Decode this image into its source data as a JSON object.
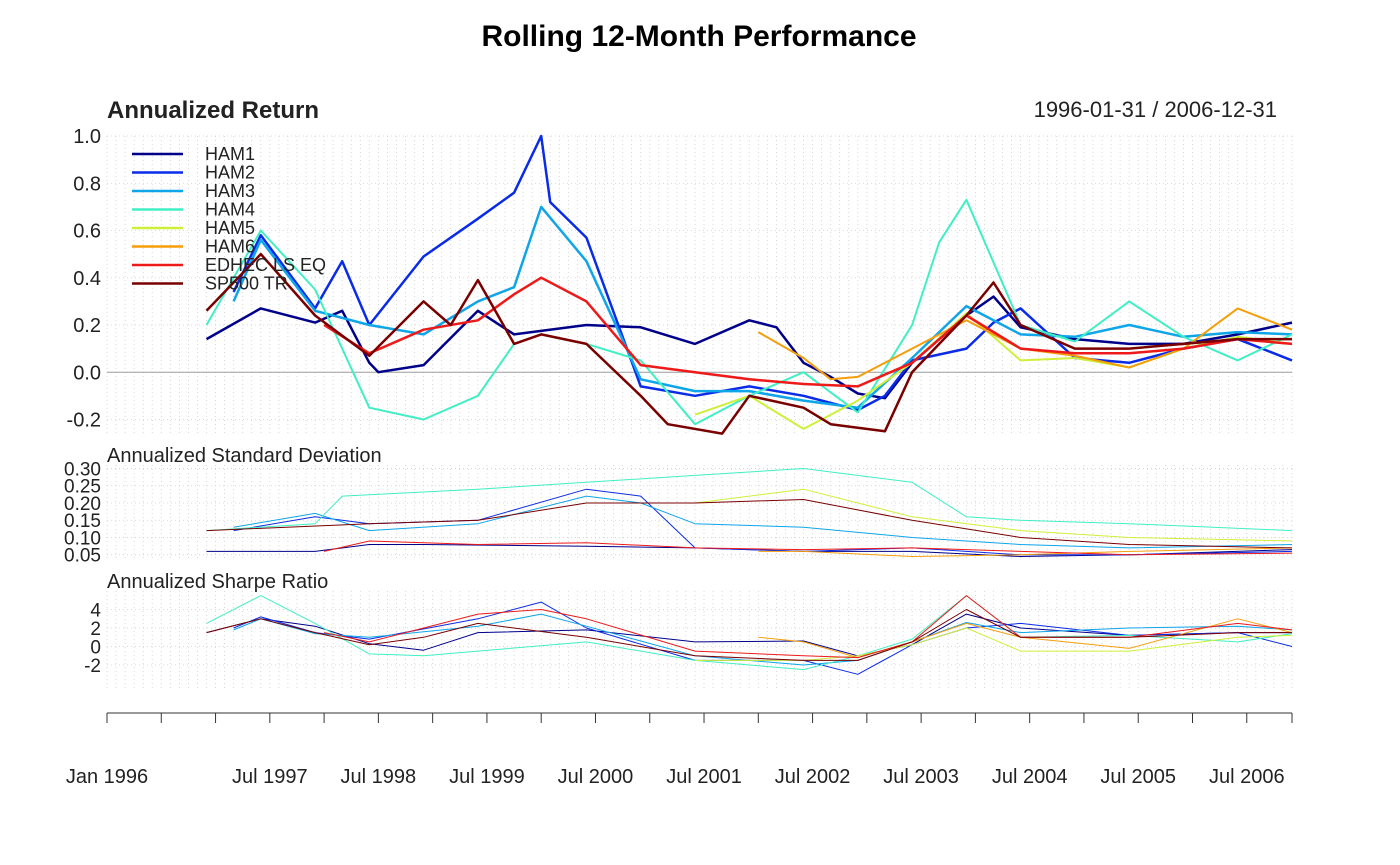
{
  "title": "Rolling 12-Month Performance",
  "date_range": "1996-01-31 / 2006-12-31",
  "chart_data": [
    {
      "type": "line",
      "panel": "return",
      "title": "Annualized Return",
      "ylim": [
        -0.27,
        1.0
      ],
      "yticks": [
        1.0,
        0.8,
        0.6,
        0.4,
        0.2,
        0.0,
        -0.2
      ],
      "ytick_labels": [
        "1.0",
        "0.8",
        "0.6",
        "0.4",
        "0.2",
        "0.0",
        "-0.2"
      ],
      "grid": true,
      "legend_position": "top-left",
      "series": [
        {
          "name": "HAM1",
          "color": "#00008B",
          "width": 2.5,
          "x": [
            "1996-12",
            "1997-06",
            "1997-12",
            "1998-03",
            "1998-06",
            "1998-07",
            "1998-12",
            "1999-06",
            "1999-10",
            "2000-06",
            "2000-12",
            "2001-06",
            "2001-12",
            "2002-03",
            "2002-06",
            "2002-09",
            "2002-12",
            "2003-03",
            "2003-06",
            "2003-12",
            "2004-03",
            "2004-06",
            "2004-12",
            "2005-06",
            "2005-12",
            "2006-06",
            "2006-12"
          ],
          "y": [
            0.14,
            0.27,
            0.21,
            0.26,
            0.04,
            0.0,
            0.03,
            0.26,
            0.16,
            0.2,
            0.19,
            0.12,
            0.22,
            0.19,
            0.04,
            -0.02,
            -0.09,
            -0.11,
            0.04,
            0.24,
            0.32,
            0.19,
            0.14,
            0.12,
            0.12,
            0.16,
            0.21
          ]
        },
        {
          "name": "HAM2",
          "color": "#0A2BE8",
          "width": 2.5,
          "x": [
            "1997-03",
            "1997-06",
            "1997-12",
            "1998-03",
            "1998-06",
            "1998-12",
            "1999-06",
            "1999-10",
            "2000-01",
            "2000-02",
            "2000-06",
            "2000-12",
            "2001-06",
            "2001-12",
            "2002-06",
            "2002-12",
            "2003-03",
            "2003-06",
            "2003-12",
            "2004-03",
            "2004-06",
            "2004-12",
            "2005-06",
            "2005-12",
            "2006-06",
            "2006-12"
          ],
          "y": [
            0.34,
            0.58,
            0.27,
            0.47,
            0.2,
            0.49,
            0.65,
            0.76,
            1.0,
            0.72,
            0.57,
            -0.06,
            -0.1,
            -0.06,
            -0.1,
            -0.16,
            -0.1,
            0.05,
            0.1,
            0.21,
            0.27,
            0.06,
            0.04,
            0.1,
            0.14,
            0.05
          ]
        },
        {
          "name": "HAM3",
          "color": "#0EA5E9",
          "width": 2.5,
          "x": [
            "1997-03",
            "1997-06",
            "1997-12",
            "1998-06",
            "1998-12",
            "1999-06",
            "1999-10",
            "2000-01",
            "2000-06",
            "2000-12",
            "2001-06",
            "2001-12",
            "2002-06",
            "2002-12",
            "2003-06",
            "2003-12",
            "2004-06",
            "2004-12",
            "2005-06",
            "2005-12",
            "2006-06",
            "2006-12"
          ],
          "y": [
            0.3,
            0.56,
            0.26,
            0.2,
            0.16,
            0.3,
            0.36,
            0.7,
            0.47,
            -0.03,
            -0.08,
            -0.08,
            -0.12,
            -0.15,
            0.06,
            0.28,
            0.16,
            0.15,
            0.2,
            0.15,
            0.17,
            0.16
          ]
        },
        {
          "name": "HAM4",
          "color": "#40EFC4",
          "width": 2,
          "x": [
            "1996-12",
            "1997-06",
            "1997-12",
            "1998-06",
            "1998-12",
            "1999-06",
            "1999-10",
            "2000-01",
            "2000-06",
            "2000-12",
            "2001-06",
            "2001-12",
            "2002-06",
            "2002-12",
            "2003-06",
            "2003-09",
            "2003-12",
            "2004-06",
            "2004-12",
            "2005-06",
            "2005-12",
            "2006-06",
            "2006-12"
          ],
          "y": [
            0.2,
            0.6,
            0.35,
            -0.15,
            -0.2,
            -0.1,
            0.12,
            0.16,
            0.12,
            0.05,
            -0.22,
            -0.1,
            0.0,
            -0.17,
            0.2,
            0.55,
            0.73,
            0.2,
            0.13,
            0.3,
            0.15,
            0.05,
            0.16
          ]
        },
        {
          "name": "HAM5",
          "color": "#CFF03A",
          "width": 2,
          "x": [
            "2001-06",
            "2001-12",
            "2002-06",
            "2002-12",
            "2003-06",
            "2003-12",
            "2004-06",
            "2004-12",
            "2005-06",
            "2005-12",
            "2006-06",
            "2006-12"
          ],
          "y": [
            -0.18,
            -0.1,
            -0.24,
            -0.12,
            0.04,
            0.25,
            0.05,
            0.06,
            0.02,
            0.1,
            0.15,
            0.12
          ]
        },
        {
          "name": "HAM6",
          "color": "#F59E0B",
          "width": 2,
          "x": [
            "2002-01",
            "2002-06",
            "2002-09",
            "2002-12",
            "2003-06",
            "2003-12",
            "2004-06",
            "2004-12",
            "2005-06",
            "2005-12",
            "2006-06",
            "2006-12"
          ],
          "y": [
            0.17,
            0.06,
            -0.03,
            -0.02,
            0.1,
            0.22,
            0.1,
            0.07,
            0.02,
            0.1,
            0.27,
            0.18
          ]
        },
        {
          "name": "EDHEC LS EQ",
          "color": "#EE1A1A",
          "width": 2.5,
          "x": [
            "1998-01",
            "1998-06",
            "1998-12",
            "1999-06",
            "1999-10",
            "2000-01",
            "2000-06",
            "2000-12",
            "2001-06",
            "2001-12",
            "2002-06",
            "2002-12",
            "2003-06",
            "2003-12",
            "2004-06",
            "2004-12",
            "2005-06",
            "2005-12",
            "2006-06",
            "2006-12"
          ],
          "y": [
            0.2,
            0.08,
            0.18,
            0.22,
            0.33,
            0.4,
            0.3,
            0.03,
            0.0,
            -0.03,
            -0.05,
            -0.06,
            0.04,
            0.24,
            0.1,
            0.08,
            0.08,
            0.1,
            0.14,
            0.12
          ]
        },
        {
          "name": "SP500 TR",
          "color": "#7A0000",
          "width": 2.5,
          "x": [
            "1996-12",
            "1997-06",
            "1997-12",
            "1998-06",
            "1998-12",
            "1999-03",
            "1999-06",
            "1999-10",
            "2000-01",
            "2000-06",
            "2000-12",
            "2001-03",
            "2001-09",
            "2001-12",
            "2002-06",
            "2002-09",
            "2003-03",
            "2003-06",
            "2003-12",
            "2004-03",
            "2004-06",
            "2004-12",
            "2005-06",
            "2005-12",
            "2006-06",
            "2006-12"
          ],
          "y": [
            0.26,
            0.5,
            0.24,
            0.07,
            0.3,
            0.2,
            0.39,
            0.12,
            0.16,
            0.12,
            -0.1,
            -0.22,
            -0.26,
            -0.1,
            -0.15,
            -0.22,
            -0.25,
            0.0,
            0.24,
            0.38,
            0.2,
            0.1,
            0.1,
            0.12,
            0.14,
            0.14
          ]
        }
      ]
    },
    {
      "type": "line",
      "panel": "std_dev",
      "title": "Annualized Standard Deviation",
      "ylim": [
        0.035,
        0.31
      ],
      "yticks": [
        0.3,
        0.25,
        0.2,
        0.15,
        0.1,
        0.05
      ],
      "ytick_labels": [
        "0.30",
        "0.25",
        "0.20",
        "0.15",
        "0.10",
        "0.05"
      ],
      "grid": true,
      "series": [
        {
          "color": "#00008B",
          "x": [
            "1996-12",
            "1997-12",
            "1998-06",
            "1998-12",
            "2000-06",
            "2001-06",
            "2002-06",
            "2003-06",
            "2004-06",
            "2005-06",
            "2006-12"
          ],
          "y": [
            0.06,
            0.06,
            0.08,
            0.08,
            0.075,
            0.07,
            0.06,
            0.06,
            0.045,
            0.05,
            0.065
          ]
        },
        {
          "color": "#0A2BE8",
          "x": [
            "1997-03",
            "1997-12",
            "1998-06",
            "1999-06",
            "2000-06",
            "2000-12",
            "2001-06",
            "2002-06",
            "2003-06",
            "2004-06",
            "2005-06",
            "2006-12"
          ],
          "y": [
            0.12,
            0.16,
            0.14,
            0.15,
            0.24,
            0.22,
            0.07,
            0.06,
            0.07,
            0.05,
            0.05,
            0.06
          ]
        },
        {
          "color": "#0EA5E9",
          "x": [
            "1997-03",
            "1997-12",
            "1998-06",
            "1999-06",
            "2000-06",
            "2000-12",
            "2001-06",
            "2002-06",
            "2003-06",
            "2004-06",
            "2005-06",
            "2006-12"
          ],
          "y": [
            0.13,
            0.17,
            0.12,
            0.14,
            0.22,
            0.2,
            0.14,
            0.13,
            0.1,
            0.08,
            0.07,
            0.08
          ]
        },
        {
          "color": "#40EFC4",
          "x": [
            "1996-12",
            "1997-12",
            "1998-03",
            "1999-06",
            "2000-06",
            "2001-06",
            "2002-06",
            "2003-06",
            "2003-12",
            "2004-06",
            "2005-06",
            "2006-12"
          ],
          "y": [
            0.12,
            0.14,
            0.22,
            0.24,
            0.26,
            0.28,
            0.3,
            0.26,
            0.16,
            0.15,
            0.14,
            0.12
          ]
        },
        {
          "color": "#CFF03A",
          "x": [
            "2001-06",
            "2002-06",
            "2002-12",
            "2003-06",
            "2004-06",
            "2005-06",
            "2006-12"
          ],
          "y": [
            0.2,
            0.24,
            0.2,
            0.16,
            0.12,
            0.1,
            0.09
          ]
        },
        {
          "color": "#F59E0B",
          "x": [
            "2002-01",
            "2002-06",
            "2003-06",
            "2004-06",
            "2005-06",
            "2006-12"
          ],
          "y": [
            0.06,
            0.06,
            0.045,
            0.05,
            0.06,
            0.07
          ]
        },
        {
          "color": "#EE1A1A",
          "x": [
            "1998-01",
            "1998-06",
            "1999-06",
            "2000-06",
            "2001-06",
            "2002-06",
            "2003-06",
            "2004-06",
            "2005-06",
            "2006-12"
          ],
          "y": [
            0.06,
            0.09,
            0.08,
            0.085,
            0.07,
            0.065,
            0.07,
            0.06,
            0.05,
            0.055
          ]
        },
        {
          "color": "#7A0000",
          "x": [
            "1996-12",
            "1998-06",
            "1999-06",
            "2000-06",
            "2001-06",
            "2002-06",
            "2003-06",
            "2004-06",
            "2005-06",
            "2006-12"
          ],
          "y": [
            0.12,
            0.14,
            0.15,
            0.2,
            0.2,
            0.21,
            0.15,
            0.1,
            0.08,
            0.07
          ]
        }
      ]
    },
    {
      "type": "line",
      "panel": "sharpe",
      "title": "Annualized Sharpe Ratio",
      "ylim": [
        -4.7,
        6.0
      ],
      "yticks": [
        4,
        2,
        0,
        -2
      ],
      "ytick_labels": [
        "4",
        "2",
        "0",
        "-2"
      ],
      "grid": true,
      "series": [
        {
          "color": "#00008B",
          "x": [
            "1996-12",
            "1997-06",
            "1997-12",
            "1998-06",
            "1998-12",
            "1999-06",
            "2000-06",
            "2001-06",
            "2002-06",
            "2002-12",
            "2003-06",
            "2003-12",
            "2004-06",
            "2005-06",
            "2006-06",
            "2006-12"
          ],
          "y": [
            1.5,
            3.0,
            2.2,
            0.3,
            -0.4,
            1.5,
            1.8,
            0.5,
            0.6,
            -1.0,
            0.2,
            3.5,
            2.0,
            1.2,
            1.5,
            1.5
          ]
        },
        {
          "color": "#0A2BE8",
          "x": [
            "1997-03",
            "1997-06",
            "1997-12",
            "1998-06",
            "1999-06",
            "2000-01",
            "2000-06",
            "2001-06",
            "2002-06",
            "2002-12",
            "2003-06",
            "2003-12",
            "2004-06",
            "2005-06",
            "2006-06",
            "2006-12"
          ],
          "y": [
            2.0,
            3.2,
            1.5,
            0.8,
            3.0,
            4.8,
            2.0,
            -1.5,
            -1.5,
            -3.0,
            0.2,
            2.0,
            2.5,
            1.2,
            1.5,
            0.0
          ]
        },
        {
          "color": "#0EA5E9",
          "x": [
            "1997-03",
            "1997-06",
            "1997-12",
            "1998-06",
            "1999-06",
            "2000-01",
            "2000-06",
            "2001-06",
            "2002-06",
            "2002-12",
            "2003-06",
            "2003-12",
            "2004-06",
            "2005-06",
            "2006-06",
            "2006-12"
          ],
          "y": [
            1.8,
            3.0,
            1.4,
            1.0,
            2.2,
            3.5,
            2.2,
            -1.0,
            -2.0,
            -1.5,
            0.5,
            2.6,
            1.5,
            2.0,
            2.2,
            1.8
          ]
        },
        {
          "color": "#40EFC4",
          "x": [
            "1996-12",
            "1997-06",
            "1997-12",
            "1998-06",
            "1998-12",
            "1999-06",
            "2000-06",
            "2001-06",
            "2002-06",
            "2002-12",
            "2003-06",
            "2003-12",
            "2004-06",
            "2005-06",
            "2006-06",
            "2006-12"
          ],
          "y": [
            2.5,
            5.5,
            2.5,
            -0.8,
            -1.0,
            -0.5,
            0.5,
            -1.5,
            -2.5,
            -1.0,
            0.8,
            5.5,
            1.0,
            1.2,
            0.5,
            1.4
          ]
        },
        {
          "color": "#CFF03A",
          "x": [
            "2001-06",
            "2002-06",
            "2002-12",
            "2003-06",
            "2003-12",
            "2004-06",
            "2005-06",
            "2006-06",
            "2006-12"
          ],
          "y": [
            -1.5,
            -1.5,
            -1.0,
            0.2,
            2.0,
            -0.5,
            -0.5,
            1.0,
            1.2
          ]
        },
        {
          "color": "#F59E0B",
          "x": [
            "2002-01",
            "2002-06",
            "2002-12",
            "2003-06",
            "2003-12",
            "2004-06",
            "2005-06",
            "2006-06",
            "2006-12"
          ],
          "y": [
            1.0,
            0.5,
            -1.2,
            0.5,
            2.5,
            1.0,
            -0.2,
            3.0,
            1.5
          ]
        },
        {
          "color": "#EE1A1A",
          "x": [
            "1998-01",
            "1998-06",
            "1999-06",
            "2000-01",
            "2000-06",
            "2001-06",
            "2002-06",
            "2002-12",
            "2003-06",
            "2003-12",
            "2004-06",
            "2005-06",
            "2006-06",
            "2006-12"
          ],
          "y": [
            1.5,
            0.5,
            3.5,
            4.0,
            3.0,
            -0.5,
            -1.0,
            -1.2,
            0.5,
            5.5,
            1.0,
            1.0,
            2.5,
            1.8
          ]
        },
        {
          "color": "#7A0000",
          "x": [
            "1996-12",
            "1997-06",
            "1997-12",
            "1998-06",
            "1998-12",
            "1999-06",
            "2000-06",
            "2001-06",
            "2002-06",
            "2002-12",
            "2003-06",
            "2003-12",
            "2004-06",
            "2005-06",
            "2006-06",
            "2006-12"
          ],
          "y": [
            1.5,
            3.0,
            1.5,
            0.2,
            1.0,
            2.5,
            1.0,
            -1.0,
            -1.5,
            -1.5,
            0.5,
            4.0,
            1.0,
            1.0,
            1.5,
            1.5
          ]
        }
      ]
    }
  ],
  "x_axis": {
    "tick_labels": [
      "Jan 1996",
      "Jul 1997",
      "Jul 1998",
      "Jul 1999",
      "Jul 2000",
      "Jul 2001",
      "Jul 2002",
      "Jul 2003",
      "Jul 2004",
      "Jul 2005",
      "Jul 2006"
    ],
    "tick_dates": [
      "1996-01",
      "1997-07",
      "1998-07",
      "1999-07",
      "2000-07",
      "2001-07",
      "2002-07",
      "2003-07",
      "2004-07",
      "2005-07",
      "2006-07"
    ],
    "range": [
      "1996-01",
      "2006-12"
    ]
  },
  "colors": {
    "grid": "#cfcfcf",
    "zero_line": "#9e9e9e",
    "axis": "#333333",
    "text": "#222222"
  }
}
